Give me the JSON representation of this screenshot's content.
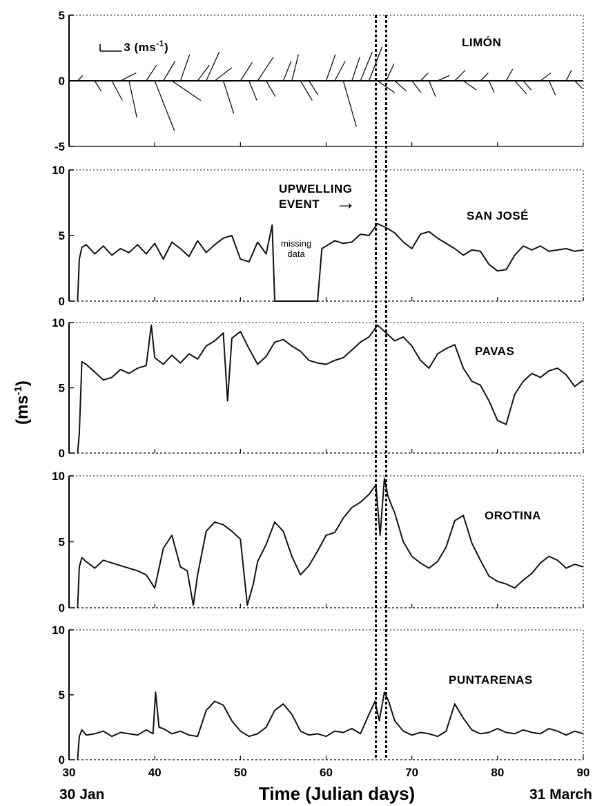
{
  "chart_data": {
    "type": "line",
    "xlabel": "Time (Julian days)",
    "ylabel": "(ms",
    "ylabel_sup": "-1",
    "xlim": [
      30,
      90
    ],
    "x_ticks": [
      "30",
      "40",
      "50",
      "60",
      "70",
      "80",
      "90"
    ],
    "x_date_start": "30 Jan",
    "x_date_end": "31 March",
    "event": {
      "label_line1": "UPWELLING",
      "label_line2": "EVENT",
      "arrow": "→",
      "x_start": 65.8,
      "x_end": 67.0
    },
    "panels": [
      {
        "station": "LIMÓN",
        "kind": "stick_vectors",
        "ylim": [
          -5,
          5
        ],
        "y_ticks": [
          "5",
          "0",
          "-5"
        ],
        "scale_label_prefix": "3 (ms",
        "scale_label_sup": "-1",
        "scale_label_suffix": ")",
        "scale_value": 3,
        "x": [
          31,
          33,
          35,
          36,
          37,
          39,
          40,
          41,
          42,
          43,
          45,
          46,
          47,
          48,
          50,
          51,
          52,
          53,
          55,
          56,
          57,
          58,
          60,
          61,
          62,
          63,
          64,
          65,
          66,
          67,
          68,
          70,
          71,
          72,
          73,
          75,
          76,
          78,
          79,
          81,
          82,
          83,
          85,
          86,
          88,
          89
        ],
        "u": [
          0.4,
          0.5,
          0.8,
          1.2,
          0.6,
          0.8,
          1.5,
          0.9,
          2.2,
          0.7,
          0.9,
          1.0,
          1.3,
          0.8,
          0.9,
          0.6,
          1.2,
          0.7,
          0.6,
          0.5,
          0.9,
          0.7,
          0.7,
          0.8,
          1.0,
          0.6,
          0.9,
          1.0,
          1.3,
          0.6,
          0.9,
          0.7,
          0.6,
          0.5,
          0.9,
          0.8,
          1.0,
          0.6,
          0.4,
          0.5,
          0.9,
          0.6,
          0.8,
          0.5,
          0.4,
          0.6
        ],
        "v": [
          0.4,
          -0.8,
          -1.5,
          0.6,
          -2.8,
          1.2,
          -3.8,
          1.5,
          -1.5,
          2.0,
          1.2,
          2.2,
          1.0,
          -2.5,
          1.4,
          -1.5,
          1.8,
          -1.2,
          1.5,
          2.0,
          -1.5,
          -1.1,
          2.0,
          1.5,
          -3.5,
          1.8,
          2.2,
          2.6,
          -0.9,
          1.3,
          -0.8,
          -0.9,
          0.6,
          -1.2,
          0.4,
          0.8,
          -0.7,
          0.6,
          -0.9,
          0.9,
          -1.0,
          -0.7,
          0.6,
          -1.1,
          0.8,
          -0.6
        ]
      },
      {
        "station": "SAN JOSÉ",
        "kind": "speed",
        "ylim": [
          0,
          10
        ],
        "y_ticks": [
          "10",
          "5",
          "0"
        ],
        "missing_label_line1": "missing",
        "missing_label_line2": "data",
        "missing_range": [
          54,
          59
        ],
        "x": [
          31.0,
          31.2,
          31.5,
          32,
          33,
          34,
          35,
          36,
          37,
          38,
          39,
          40,
          41,
          42,
          43,
          44,
          45,
          46,
          47,
          48,
          49,
          50,
          51,
          52,
          53,
          53.7,
          54.0,
          59.0,
          59.5,
          60,
          61,
          62,
          63,
          64,
          65,
          66,
          67,
          68,
          69,
          70,
          71,
          72,
          73,
          74,
          75,
          76,
          77,
          78,
          79,
          80,
          81,
          82,
          83,
          84,
          85,
          86,
          87,
          88,
          89,
          90
        ],
        "y": [
          0,
          3.2,
          4.1,
          4.3,
          3.6,
          4.2,
          3.5,
          4.0,
          3.7,
          4.3,
          3.6,
          4.4,
          3.2,
          4.5,
          4.0,
          3.4,
          4.6,
          3.7,
          4.3,
          4.8,
          5.0,
          3.2,
          3.0,
          4.5,
          3.6,
          5.8,
          0,
          0,
          4.0,
          4.2,
          4.6,
          4.4,
          4.5,
          5.1,
          5.0,
          5.9,
          5.6,
          5.2,
          4.5,
          4.0,
          5.1,
          5.3,
          4.8,
          4.4,
          4.0,
          3.5,
          3.9,
          3.8,
          2.8,
          2.3,
          2.4,
          3.5,
          4.2,
          3.9,
          4.2,
          3.8,
          3.9,
          4.0,
          3.8,
          3.9
        ]
      },
      {
        "station": "PAVAS",
        "kind": "speed",
        "ylim": [
          0,
          10
        ],
        "y_ticks": [
          "10",
          "5",
          "0"
        ],
        "x": [
          31.0,
          31.2,
          31.5,
          32,
          33,
          34,
          35,
          36,
          37,
          38,
          39,
          39.6,
          40,
          41,
          42,
          43,
          44,
          45,
          46,
          47,
          48,
          48.5,
          49,
          50,
          51,
          52,
          53,
          54,
          55,
          56,
          57,
          58,
          59,
          60,
          61,
          62,
          63,
          64,
          65,
          66,
          67,
          68,
          69,
          70,
          71,
          72,
          73,
          74,
          75,
          76,
          77,
          78,
          79,
          80,
          81,
          82,
          83,
          84,
          85,
          86,
          87,
          88,
          89,
          90
        ],
        "y": [
          0,
          1.5,
          7.0,
          6.8,
          6.2,
          5.6,
          5.8,
          6.4,
          6.1,
          6.5,
          6.7,
          9.8,
          7.3,
          6.8,
          7.5,
          6.9,
          7.6,
          7.2,
          8.2,
          8.6,
          9.2,
          4.0,
          8.8,
          9.3,
          8.0,
          6.8,
          7.4,
          8.5,
          8.7,
          8.2,
          7.8,
          7.1,
          6.9,
          6.8,
          7.1,
          7.3,
          7.9,
          8.5,
          8.9,
          9.8,
          9.2,
          8.6,
          8.9,
          8.2,
          7.1,
          6.5,
          7.6,
          8.0,
          8.3,
          6.5,
          5.5,
          5.2,
          4.0,
          2.5,
          2.2,
          4.5,
          5.5,
          6.1,
          5.8,
          6.3,
          6.5,
          6.0,
          5.1,
          5.6
        ]
      },
      {
        "station": "OROTINA",
        "kind": "speed",
        "ylim": [
          0,
          10
        ],
        "y_ticks": [
          "10",
          "5",
          "0"
        ],
        "x": [
          31.0,
          31.2,
          31.5,
          32,
          33,
          34,
          35,
          36,
          37,
          38,
          39,
          40,
          41,
          42,
          43,
          43.8,
          44.5,
          45,
          46,
          47,
          48,
          49,
          50,
          50.8,
          51.5,
          52,
          53,
          54,
          55,
          56,
          57,
          58,
          59,
          60,
          61,
          62,
          63,
          64,
          65,
          65.8,
          66.3,
          66.8,
          67.2,
          67.6,
          68,
          69,
          70,
          71,
          72,
          73,
          74,
          75,
          76,
          77,
          78,
          79,
          80,
          81,
          82,
          83,
          84,
          85,
          86,
          87,
          88,
          89,
          90
        ],
        "y": [
          0,
          3.1,
          3.8,
          3.5,
          3.0,
          3.6,
          3.4,
          3.2,
          3.0,
          2.8,
          2.5,
          1.5,
          4.5,
          5.5,
          3.1,
          2.8,
          0.2,
          2.5,
          5.8,
          6.5,
          6.3,
          5.8,
          5.2,
          0.2,
          1.8,
          3.5,
          4.8,
          6.5,
          5.8,
          3.9,
          2.5,
          3.2,
          4.3,
          5.5,
          5.7,
          6.8,
          7.6,
          8.0,
          8.6,
          9.3,
          5.5,
          9.8,
          8.5,
          7.8,
          7.2,
          5.0,
          3.9,
          3.4,
          3.0,
          3.5,
          4.6,
          6.6,
          7.0,
          4.9,
          3.6,
          2.4,
          2.0,
          1.8,
          1.5,
          2.1,
          2.6,
          3.4,
          3.9,
          3.6,
          3.0,
          3.3,
          3.1
        ]
      },
      {
        "station": "PUNTARENAS",
        "kind": "speed",
        "ylim": [
          0,
          10
        ],
        "y_ticks": [
          "10",
          "5",
          "0"
        ],
        "x": [
          31.0,
          31.2,
          31.5,
          32,
          33,
          34,
          35,
          36,
          37,
          38,
          39,
          39.8,
          40.1,
          40.5,
          41,
          42,
          43,
          44,
          45,
          46,
          47,
          48,
          49,
          50,
          51,
          52,
          53,
          54,
          55,
          56,
          57,
          58,
          59,
          60,
          61,
          62,
          63,
          64,
          65,
          65.7,
          66.2,
          66.8,
          67.3,
          68,
          69,
          70,
          71,
          72,
          73,
          74,
          75,
          76,
          77,
          78,
          79,
          80,
          81,
          82,
          83,
          84,
          85,
          86,
          87,
          88,
          89,
          90
        ],
        "y": [
          0,
          1.8,
          2.3,
          1.9,
          2.0,
          2.2,
          1.8,
          2.1,
          2.0,
          1.9,
          2.3,
          2.0,
          5.2,
          2.5,
          2.4,
          2.0,
          2.2,
          1.9,
          1.8,
          3.8,
          4.5,
          4.2,
          3.0,
          2.2,
          1.8,
          2.0,
          2.5,
          3.8,
          4.3,
          3.5,
          2.2,
          1.9,
          2.0,
          1.8,
          2.2,
          2.1,
          2.4,
          2.0,
          3.5,
          4.5,
          3.0,
          5.2,
          4.5,
          3.0,
          2.2,
          1.9,
          2.1,
          2.0,
          1.8,
          2.2,
          4.3,
          3.2,
          2.3,
          2.0,
          2.1,
          2.4,
          2.1,
          2.0,
          2.3,
          2.1,
          2.0,
          2.4,
          2.2,
          1.9,
          2.2,
          2.0
        ]
      }
    ]
  }
}
